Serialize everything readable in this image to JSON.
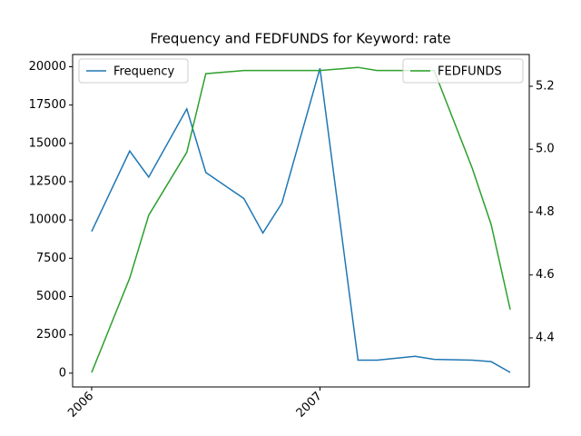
{
  "chart_data": {
    "type": "line",
    "title": "Frequency and FEDFUNDS for Keyword: rate",
    "x": [
      "2006-01",
      "2006-03",
      "2006-04",
      "2006-06",
      "2006-07",
      "2006-09",
      "2006-10",
      "2006-11",
      "2007-01",
      "2007-03",
      "2007-04",
      "2007-06",
      "2007-07",
      "2007-09",
      "2007-10",
      "2007-11"
    ],
    "series": [
      {
        "name": "Frequency",
        "color": "#1f77b4",
        "axis": "y",
        "values": [
          9250,
          14500,
          12800,
          17250,
          13100,
          11400,
          9150,
          11100,
          19900,
          850,
          850,
          1100,
          900,
          850,
          750,
          50
        ]
      },
      {
        "name": "FEDFUNDS",
        "color": "#2ca02c",
        "axis": "y2",
        "values": [
          4.29,
          4.59,
          4.79,
          4.99,
          5.24,
          5.25,
          5.25,
          5.25,
          5.25,
          5.26,
          5.25,
          5.25,
          5.25,
          4.94,
          4.76,
          4.49
        ]
      }
    ],
    "xlim": [
      "2005-12",
      "2007-12"
    ],
    "xticks": [
      {
        "value": "2006-01",
        "label": "2006"
      },
      {
        "value": "2007-01",
        "label": "2007"
      }
    ],
    "ylim": [
      -900,
      20800
    ],
    "yticks": [
      0,
      2500,
      5000,
      7500,
      10000,
      12500,
      15000,
      17500,
      20000
    ],
    "y2lim": [
      4.244,
      5.301
    ],
    "y2ticks": [
      4.4,
      4.6,
      4.8,
      {
        "value": 5,
        "label": "5.0"
      },
      5.2
    ],
    "legend": [
      "upper left",
      "upper right"
    ],
    "grid": false
  }
}
